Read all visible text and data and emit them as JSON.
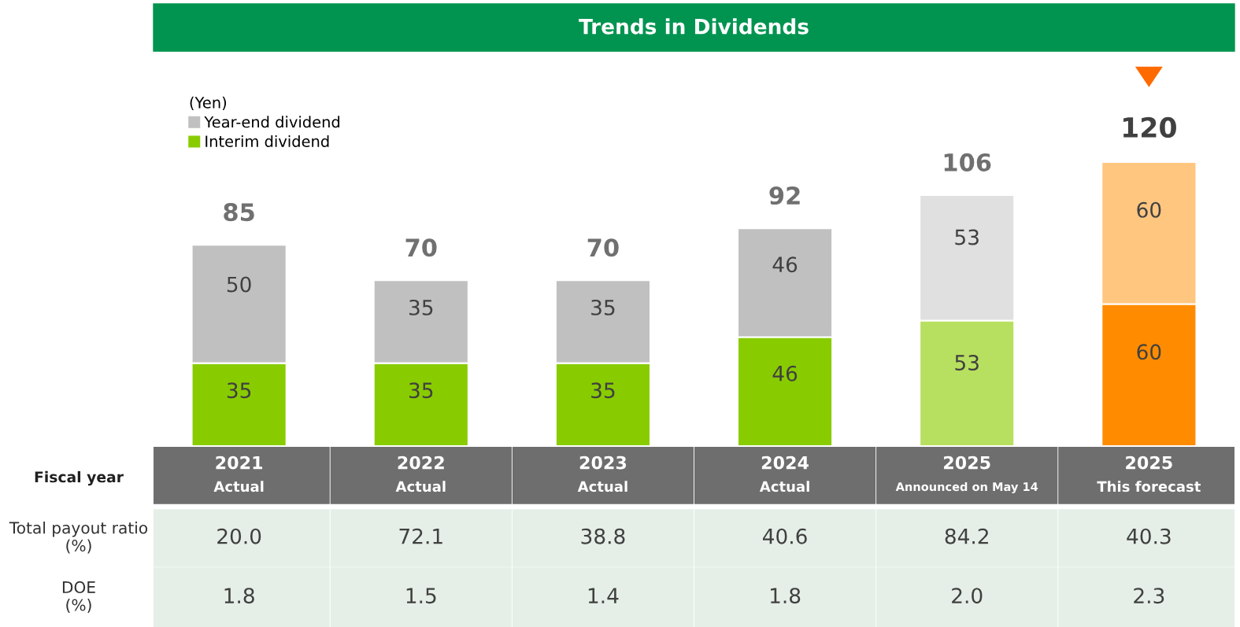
{
  "chart_data": {
    "type": "bar",
    "stacked": true,
    "title": "Trends in Dividends",
    "categories": [
      "2021\nActual",
      "2022\nActual",
      "2023\nActual",
      "2024\nActual",
      "2025\nAnnounced on May 14",
      "2025\nThis forecast"
    ],
    "series": [
      {
        "name": "Interim dividend",
        "color": "#88cc00",
        "colors": [
          "#88cc00",
          "#88cc00",
          "#88cc00",
          "#88cc00",
          "#b8e060",
          "#ff8c00"
        ],
        "values": [
          35,
          35,
          35,
          46,
          53,
          60
        ]
      },
      {
        "name": "Year-end dividend",
        "color": "#c0c0c0",
        "colors": [
          "#c0c0c0",
          "#c0c0c0",
          "#c0c0c0",
          "#c0c0c0",
          "#e0e0e0",
          "#ffc680"
        ],
        "values": [
          50,
          35,
          35,
          46,
          53,
          60
        ]
      }
    ],
    "legend_title": "(Yen)",
    "legend": "top left",
    "data_labels": true,
    "totals": [
      "85",
      "70",
      "70",
      "92",
      "106",
      "120"
    ],
    "tick_labels": "x",
    "annotations": [
      "Fiscal year",
      "Total payout ratio\n(%)",
      "20.0",
      "72.1",
      "38.8",
      "40.6",
      "84.2",
      "40.3",
      "DOE\n(%)",
      "1.8",
      "1.5",
      "1.4",
      "1.8",
      "2.0",
      "2.3"
    ]
  }
}
